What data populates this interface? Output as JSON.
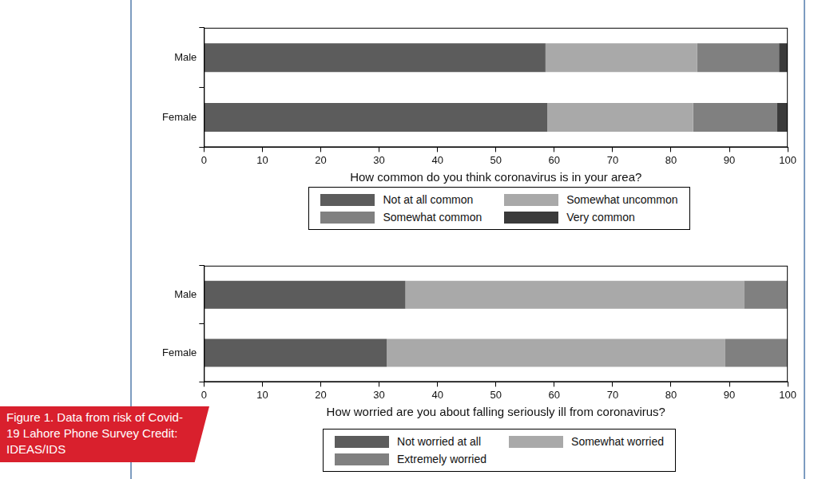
{
  "caption": "Figure 1. Data from risk of Covid-19 Lahore Phone Survey Credit: IDEAS/IDS",
  "chart_data": [
    {
      "type": "bar",
      "orientation": "horizontal",
      "stacked": true,
      "grid": false,
      "legend": "bottom",
      "x_label": "How common do you think coronavirus is in your area?",
      "categories": [
        "Male",
        "Female"
      ],
      "series": [
        {
          "name": "Not at all common",
          "color": "#5c5c5c",
          "values": [
            58.5,
            58.8
          ]
        },
        {
          "name": "Somewhat uncommon",
          "color": "#a9a9a9",
          "values": [
            26,
            25
          ]
        },
        {
          "name": "Somewhat common",
          "color": "#808080",
          "values": [
            14,
            14.4
          ]
        },
        {
          "name": "Very common",
          "color": "#3a3a3a",
          "values": [
            1.5,
            1.8
          ]
        }
      ],
      "xlim": [
        0,
        100
      ],
      "xticks": [
        0,
        10,
        20,
        30,
        40,
        50,
        60,
        70,
        80,
        90,
        100
      ]
    },
    {
      "type": "bar",
      "orientation": "horizontal",
      "stacked": true,
      "grid": false,
      "legend": "bottom",
      "x_label": "How worried are you about falling seriously ill from coronavirus?",
      "categories": [
        "Male",
        "Female"
      ],
      "series": [
        {
          "name": "Not worried at all",
          "color": "#5c5c5c",
          "values": [
            34.5,
            31.3
          ]
        },
        {
          "name": "Somewhat worried",
          "color": "#a9a9a9",
          "values": [
            58,
            58
          ]
        },
        {
          "name": "Extremely worried",
          "color": "#808080",
          "values": [
            7.5,
            10.7
          ]
        }
      ],
      "xlim": [
        0,
        100
      ],
      "xticks": [
        0,
        10,
        20,
        30,
        40,
        50,
        60,
        70,
        80,
        90,
        100
      ]
    }
  ]
}
